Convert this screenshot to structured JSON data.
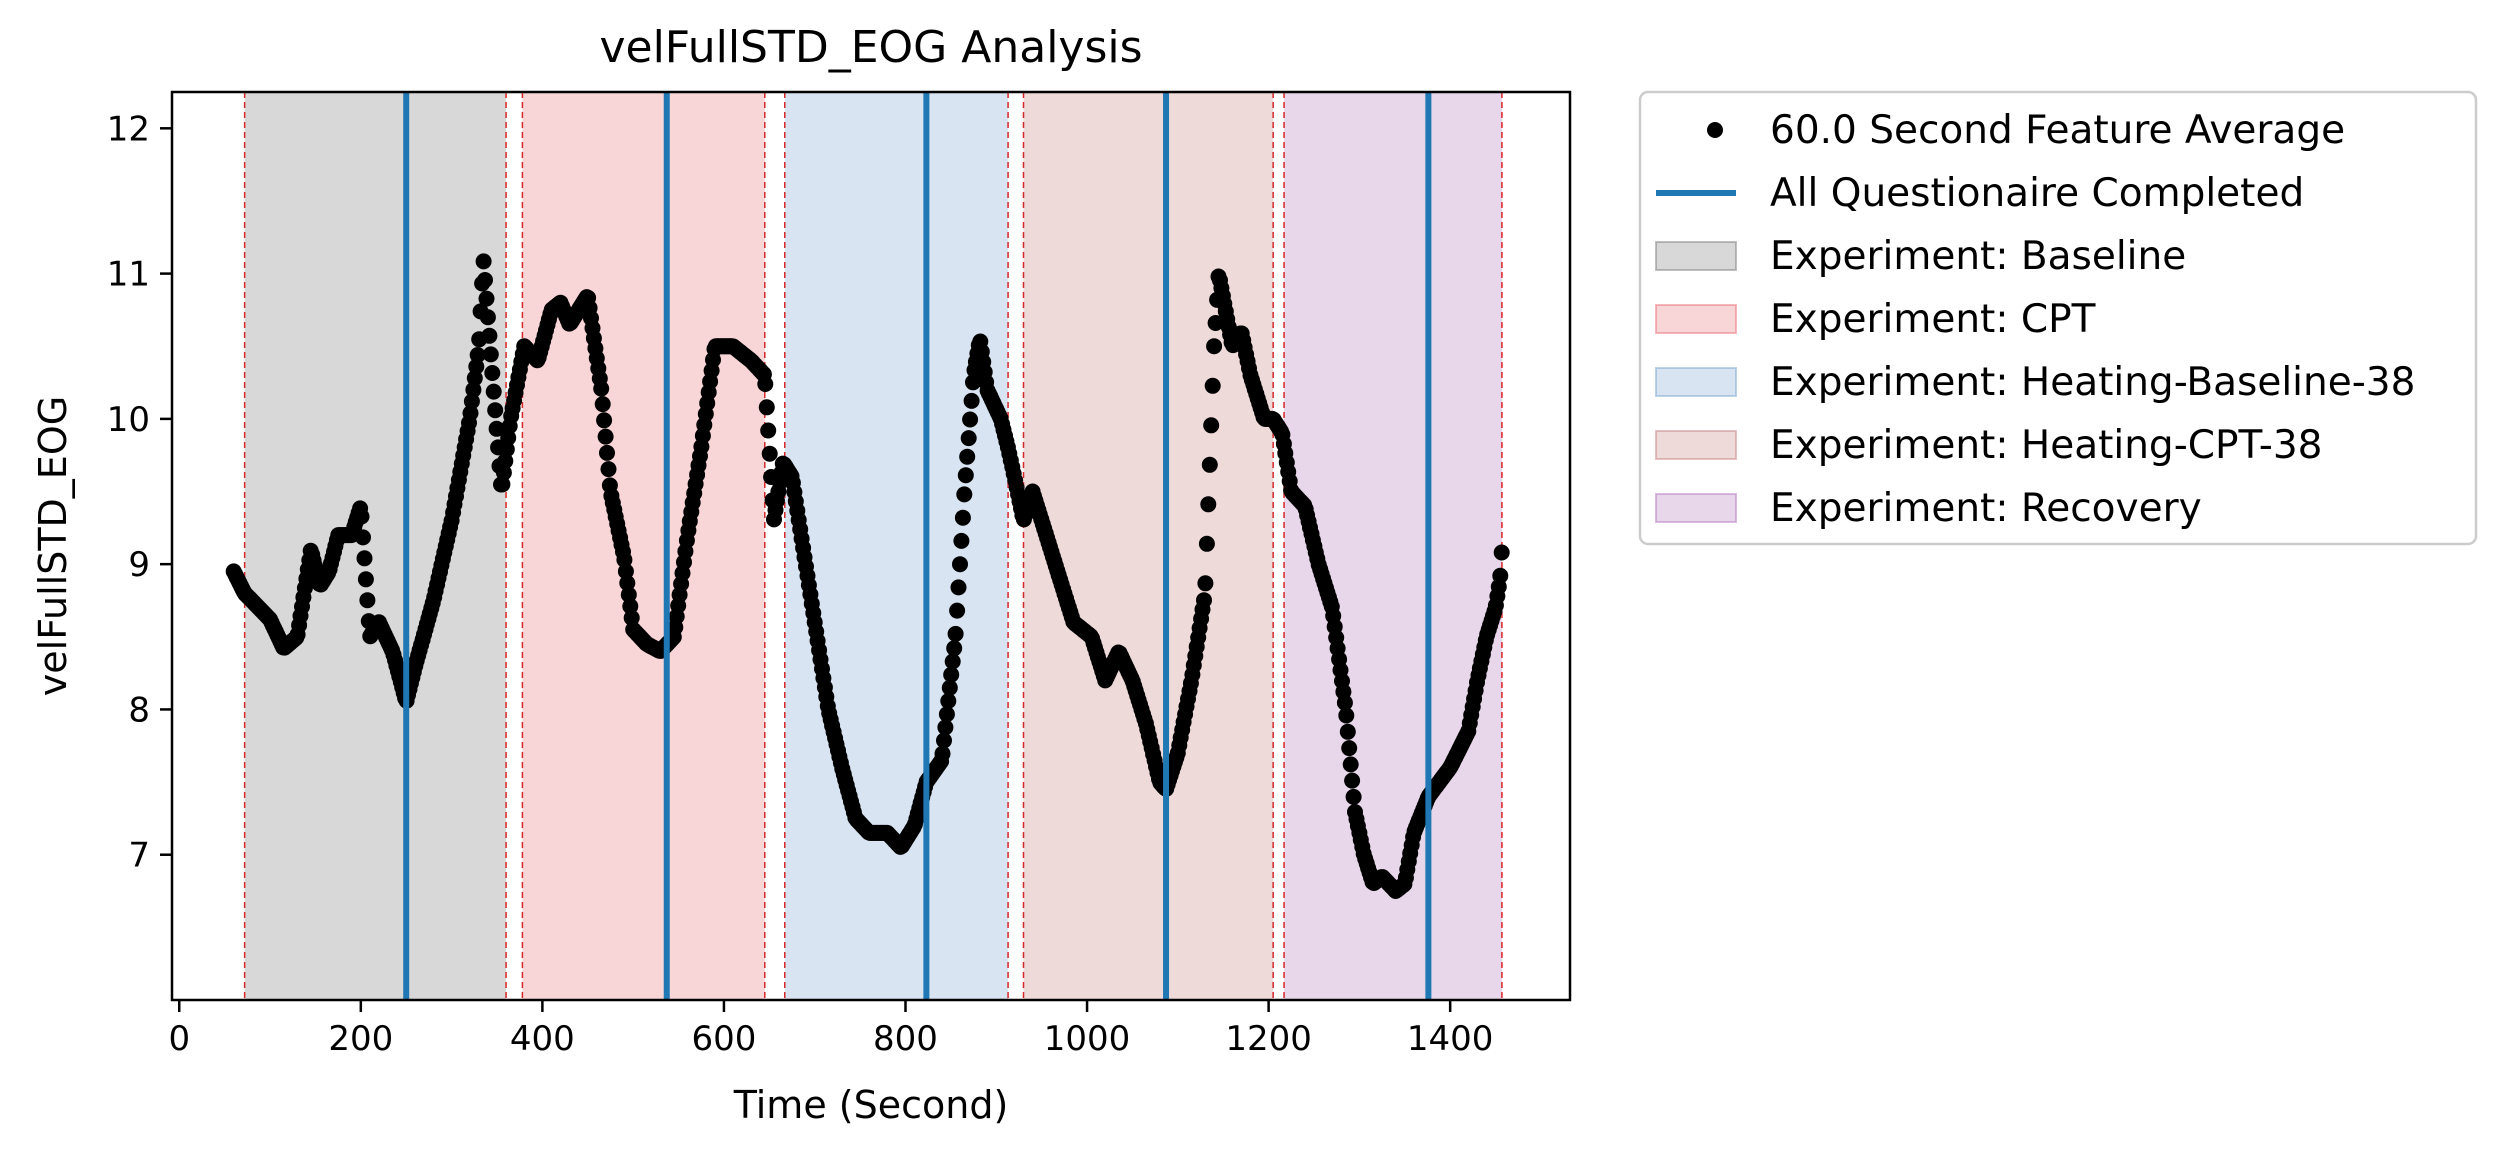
{
  "chart_data": {
    "type": "scatter",
    "title": "velFullSTD_EOG Analysis",
    "xlabel": "Time (Second)",
    "ylabel": "velFullSTD_EOG",
    "xlim": [
      -8,
      1532
    ],
    "ylim": [
      6.0,
      12.25
    ],
    "xticks": [
      0,
      200,
      400,
      600,
      800,
      1000,
      1200,
      1400
    ],
    "yticks": [
      7,
      8,
      9,
      10,
      11,
      12
    ],
    "grid": false,
    "legend_position": "outside-top-right",
    "legend": [
      {
        "label": "60.0 Second Feature Average",
        "kind": "marker",
        "color": "#000000"
      },
      {
        "label": "All Questionaire Completed",
        "kind": "line",
        "color": "#1f77b4"
      },
      {
        "label": "Experiment: Baseline",
        "kind": "patch",
        "color": "#7f7f7f"
      },
      {
        "label": "Experiment: CPT",
        "kind": "patch",
        "color": "#e8747c"
      },
      {
        "label": "Experiment: Heating-Baseline-38",
        "kind": "patch",
        "color": "#7fa7cf"
      },
      {
        "label": "Experiment: Heating-CPT-38",
        "kind": "patch",
        "color": "#c98686"
      },
      {
        "label": "Experiment: Recovery",
        "kind": "patch",
        "color": "#b27cbb"
      }
    ],
    "regions": [
      {
        "label": "Experiment: Baseline",
        "start": 72,
        "end": 360,
        "color": "#7f7f7f"
      },
      {
        "label": "Experiment: CPT",
        "start": 378,
        "end": 645,
        "color": "#e8747c"
      },
      {
        "label": "Experiment: Heating-Baseline-38",
        "start": 667,
        "end": 913,
        "color": "#7fa7cf"
      },
      {
        "label": "Experiment: Heating-CPT-38",
        "start": 930,
        "end": 1205,
        "color": "#c98686"
      },
      {
        "label": "Experiment: Recovery",
        "start": 1217,
        "end": 1457,
        "color": "#b27cbb"
      }
    ],
    "questionnaire_lines": [
      250,
      537,
      823,
      1087,
      1376
    ],
    "series": [
      {
        "name": "60.0 Second Feature Average",
        "color": "#000000",
        "keypoints": [
          [
            60,
            8.95
          ],
          [
            72,
            8.8
          ],
          [
            100,
            8.62
          ],
          [
            115,
            8.42
          ],
          [
            130,
            8.5
          ],
          [
            145,
            9.1
          ],
          [
            155,
            8.85
          ],
          [
            165,
            8.95
          ],
          [
            175,
            9.2
          ],
          [
            190,
            9.2
          ],
          [
            200,
            9.4
          ],
          [
            210,
            8.5
          ],
          [
            220,
            8.6
          ],
          [
            235,
            8.4
          ],
          [
            250,
            8.05
          ],
          [
            260,
            8.3
          ],
          [
            280,
            8.75
          ],
          [
            300,
            9.3
          ],
          [
            320,
            10.0
          ],
          [
            330,
            10.5
          ],
          [
            335,
            11.1
          ],
          [
            345,
            10.3
          ],
          [
            355,
            9.5
          ],
          [
            365,
            10.0
          ],
          [
            380,
            10.5
          ],
          [
            395,
            10.4
          ],
          [
            410,
            10.75
          ],
          [
            420,
            10.8
          ],
          [
            430,
            10.65
          ],
          [
            450,
            10.85
          ],
          [
            465,
            10.2
          ],
          [
            475,
            9.5
          ],
          [
            490,
            9.05
          ],
          [
            500,
            8.55
          ],
          [
            515,
            8.45
          ],
          [
            530,
            8.4
          ],
          [
            545,
            8.5
          ],
          [
            560,
            9.2
          ],
          [
            575,
            9.8
          ],
          [
            590,
            10.5
          ],
          [
            610,
            10.5
          ],
          [
            630,
            10.4
          ],
          [
            645,
            10.3
          ],
          [
            655,
            9.3
          ],
          [
            665,
            9.7
          ],
          [
            675,
            9.6
          ],
          [
            690,
            9.0
          ],
          [
            700,
            8.6
          ],
          [
            715,
            8.0
          ],
          [
            730,
            7.6
          ],
          [
            745,
            7.25
          ],
          [
            760,
            7.15
          ],
          [
            780,
            7.15
          ],
          [
            795,
            7.05
          ],
          [
            810,
            7.2
          ],
          [
            823,
            7.5
          ],
          [
            840,
            7.65
          ],
          [
            855,
            8.5
          ],
          [
            865,
            9.5
          ],
          [
            875,
            10.3
          ],
          [
            882,
            10.55
          ],
          [
            890,
            10.2
          ],
          [
            905,
            10.0
          ],
          [
            913,
            9.8
          ],
          [
            920,
            9.6
          ],
          [
            930,
            9.3
          ],
          [
            940,
            9.5
          ],
          [
            955,
            9.2
          ],
          [
            970,
            8.9
          ],
          [
            985,
            8.6
          ],
          [
            1005,
            8.5
          ],
          [
            1020,
            8.2
          ],
          [
            1035,
            8.4
          ],
          [
            1050,
            8.2
          ],
          [
            1065,
            7.9
          ],
          [
            1080,
            7.5
          ],
          [
            1087,
            7.45
          ],
          [
            1100,
            7.7
          ],
          [
            1115,
            8.2
          ],
          [
            1130,
            8.8
          ],
          [
            1140,
            10.5
          ],
          [
            1145,
            11.0
          ],
          [
            1160,
            10.5
          ],
          [
            1170,
            10.6
          ],
          [
            1180,
            10.3
          ],
          [
            1195,
            10.0
          ],
          [
            1205,
            10.0
          ],
          [
            1215,
            9.9
          ],
          [
            1225,
            9.5
          ],
          [
            1240,
            9.4
          ],
          [
            1255,
            9.0
          ],
          [
            1270,
            8.7
          ],
          [
            1285,
            8.0
          ],
          [
            1295,
            7.3
          ],
          [
            1305,
            7.0
          ],
          [
            1315,
            6.8
          ],
          [
            1325,
            6.85
          ],
          [
            1340,
            6.75
          ],
          [
            1350,
            6.8
          ],
          [
            1360,
            7.15
          ],
          [
            1376,
            7.4
          ],
          [
            1400,
            7.6
          ],
          [
            1420,
            7.85
          ],
          [
            1430,
            8.2
          ],
          [
            1440,
            8.5
          ],
          [
            1450,
            8.7
          ],
          [
            1455,
            8.9
          ],
          [
            1457,
            9.1
          ]
        ]
      }
    ]
  }
}
